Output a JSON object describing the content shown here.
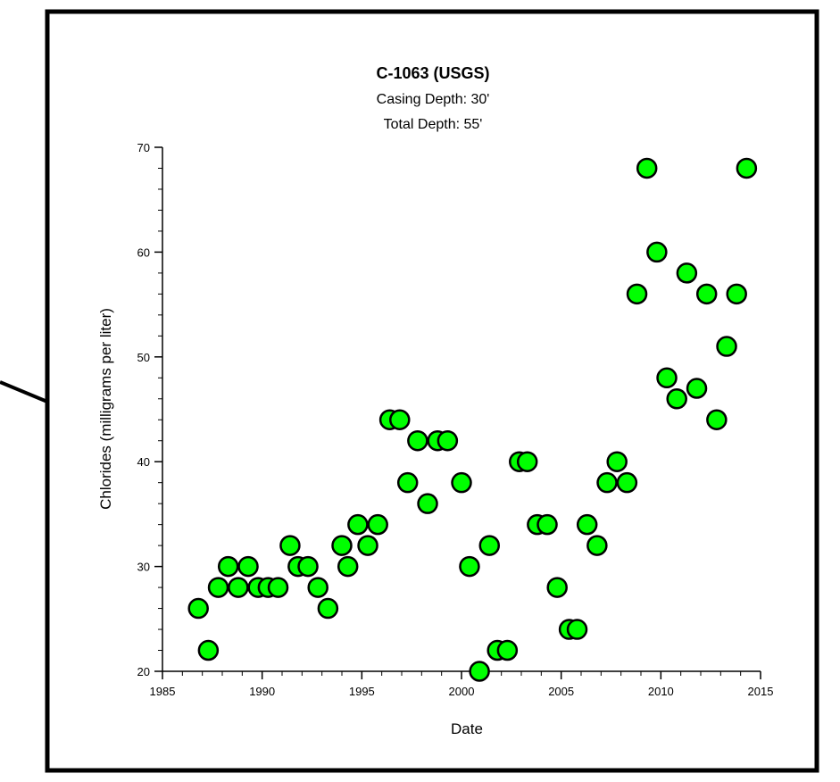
{
  "chart_data": {
    "type": "scatter",
    "title": "C-1063 (USGS)",
    "subtitle_lines": [
      "Casing Depth:  30'",
      "Total Depth:  55'"
    ],
    "xlabel": "Date",
    "ylabel": "Chlorides (milligrams per liter)",
    "xlim": [
      1985,
      2015
    ],
    "ylim": [
      20,
      70
    ],
    "x_ticks": [
      1985,
      1990,
      1995,
      2000,
      2005,
      2010,
      2015
    ],
    "y_ticks": [
      20,
      30,
      40,
      50,
      60,
      70
    ],
    "grid": false,
    "legend": "none",
    "marker_color": "#00ff00",
    "marker_edge": "#000000",
    "points": [
      [
        1986.8,
        26
      ],
      [
        1987.3,
        22
      ],
      [
        1987.8,
        28
      ],
      [
        1988.3,
        30
      ],
      [
        1988.8,
        28
      ],
      [
        1989.3,
        30
      ],
      [
        1989.8,
        28
      ],
      [
        1990.3,
        28
      ],
      [
        1990.8,
        28
      ],
      [
        1991.4,
        32
      ],
      [
        1991.8,
        30
      ],
      [
        1992.3,
        30
      ],
      [
        1992.8,
        28
      ],
      [
        1993.3,
        26
      ],
      [
        1994.0,
        32
      ],
      [
        1994.3,
        30
      ],
      [
        1994.8,
        34
      ],
      [
        1995.3,
        32
      ],
      [
        1995.8,
        34
      ],
      [
        1996.4,
        44
      ],
      [
        1996.9,
        44
      ],
      [
        1997.3,
        38
      ],
      [
        1997.8,
        42
      ],
      [
        1998.3,
        36
      ],
      [
        1998.8,
        42
      ],
      [
        1999.3,
        42
      ],
      [
        2000.0,
        38
      ],
      [
        2000.4,
        30
      ],
      [
        2000.9,
        20
      ],
      [
        2001.4,
        32
      ],
      [
        2001.8,
        22
      ],
      [
        2002.3,
        22
      ],
      [
        2002.9,
        40
      ],
      [
        2003.3,
        40
      ],
      [
        2003.8,
        34
      ],
      [
        2004.3,
        34
      ],
      [
        2004.8,
        28
      ],
      [
        2005.4,
        24
      ],
      [
        2005.8,
        24
      ],
      [
        2006.3,
        34
      ],
      [
        2006.8,
        32
      ],
      [
        2007.3,
        38
      ],
      [
        2007.8,
        40
      ],
      [
        2008.3,
        38
      ],
      [
        2008.8,
        56
      ],
      [
        2009.3,
        68
      ],
      [
        2009.8,
        60
      ],
      [
        2010.3,
        48
      ],
      [
        2010.8,
        46
      ],
      [
        2011.3,
        58
      ],
      [
        2011.8,
        47
      ],
      [
        2012.3,
        56
      ],
      [
        2012.8,
        44
      ],
      [
        2013.3,
        51
      ],
      [
        2013.8,
        56
      ],
      [
        2014.3,
        68
      ]
    ]
  }
}
